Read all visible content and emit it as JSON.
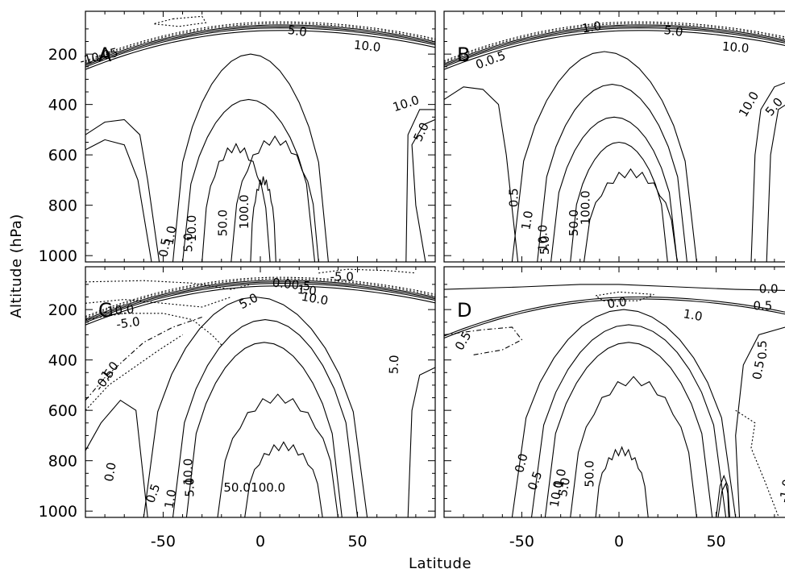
{
  "chart_data": {
    "type": "contour",
    "xlabel": "Latitude",
    "ylabel": "Altitude (hPa)",
    "xlim": [
      -90,
      90
    ],
    "ylim": [
      1025,
      30
    ],
    "x_ticks": [
      "-50",
      "0",
      "50"
    ],
    "y_ticks": [
      "200",
      "400",
      "600",
      "800",
      "1000"
    ],
    "panels": [
      {
        "label": "A",
        "contour_labels": [
          {
            "text": "5.0",
            "lat": 19,
            "p": 110,
            "rot": 8
          },
          {
            "text": "10.0",
            "lat": 55,
            "p": 170,
            "rot": 6
          },
          {
            "text": "-10.05",
            "lat": -83,
            "p": 212,
            "rot": -14
          },
          {
            "text": "10.0",
            "lat": 75,
            "p": 398,
            "rot": -18
          },
          {
            "text": "5.0",
            "lat": 83,
            "p": 510,
            "rot": -65
          },
          {
            "text": "100.0",
            "lat": -8,
            "p": 826,
            "rot": -90
          },
          {
            "text": "50.0",
            "lat": -19,
            "p": 870,
            "rot": -90
          },
          {
            "text": "10.0",
            "lat": -35,
            "p": 892,
            "rot": -90
          },
          {
            "text": "1.0",
            "lat": -46,
            "p": 920,
            "rot": -80
          },
          {
            "text": "5.0",
            "lat": -37,
            "p": 948,
            "rot": -90
          },
          {
            "text": "0.5",
            "lat": -49,
            "p": 968,
            "rot": -80
          }
        ]
      },
      {
        "label": "B",
        "contour_labels": [
          {
            "text": "1.0",
            "lat": -14,
            "p": 95,
            "rot": -10
          },
          {
            "text": "5.0",
            "lat": 28,
            "p": 110,
            "rot": 8
          },
          {
            "text": "10.0",
            "lat": 60,
            "p": 175,
            "rot": 5
          },
          {
            "text": "0.0.5",
            "lat": -66,
            "p": 225,
            "rot": -20
          },
          {
            "text": "10.0",
            "lat": 67,
            "p": 400,
            "rot": -60
          },
          {
            "text": "5.0",
            "lat": 80,
            "p": 410,
            "rot": -50
          },
          {
            "text": "0.5",
            "lat": -54,
            "p": 770,
            "rot": -90
          },
          {
            "text": "100.0",
            "lat": -17,
            "p": 810,
            "rot": -90
          },
          {
            "text": "50.0",
            "lat": -23,
            "p": 870,
            "rot": -90
          },
          {
            "text": "1.0",
            "lat": -47,
            "p": 860,
            "rot": -80
          },
          {
            "text": "10.0",
            "lat": -39,
            "p": 930,
            "rot": -90
          },
          {
            "text": "5.0",
            "lat": -38,
            "p": 958,
            "rot": -90
          }
        ]
      },
      {
        "label": "C",
        "contour_labels": [
          {
            "text": "-5.0",
            "lat": 42,
            "p": 72,
            "rot": 0
          },
          {
            "text": "0.00.5",
            "lat": 16,
            "p": 102,
            "rot": 6
          },
          {
            "text": "1.0",
            "lat": 24,
            "p": 125,
            "rot": 6
          },
          {
            "text": "5.0",
            "lat": -6,
            "p": 168,
            "rot": -28
          },
          {
            "text": "10.0",
            "lat": 28,
            "p": 158,
            "rot": 10
          },
          {
            "text": "-10.0",
            "lat": -73,
            "p": 205,
            "rot": -5
          },
          {
            "text": "-5.0",
            "lat": -68,
            "p": 255,
            "rot": -8
          },
          {
            "text": "5.0",
            "lat": 69,
            "p": 418,
            "rot": -88
          },
          {
            "text": "-1.0",
            "lat": -78,
            "p": 450,
            "rot": -50
          },
          {
            "text": "-0.5",
            "lat": -80,
            "p": 480,
            "rot": -55
          },
          {
            "text": "0.0",
            "lat": -77,
            "p": 845,
            "rot": -80
          },
          {
            "text": "100.0",
            "lat": 4,
            "p": 908,
            "rot": 0
          },
          {
            "text": "50.0",
            "lat": -12,
            "p": 908,
            "rot": 0
          },
          {
            "text": "10.0",
            "lat": -37,
            "p": 844,
            "rot": -90
          },
          {
            "text": "5.0",
            "lat": -36,
            "p": 906,
            "rot": -90
          },
          {
            "text": "1.0",
            "lat": -46,
            "p": 952,
            "rot": -80
          },
          {
            "text": "0.5",
            "lat": -55,
            "p": 930,
            "rot": -70
          }
        ]
      },
      {
        "label": "D",
        "contour_labels": [
          {
            "text": "0.0",
            "lat": 77,
            "p": 120,
            "rot": 0
          },
          {
            "text": "0.0",
            "lat": -1,
            "p": 175,
            "rot": -8
          },
          {
            "text": "0.5",
            "lat": 74,
            "p": 186,
            "rot": 0
          },
          {
            "text": "1.0",
            "lat": 38,
            "p": 224,
            "rot": 10
          },
          {
            "text": "0.5",
            "lat": -80,
            "p": 325,
            "rot": -60
          },
          {
            "text": "0.5",
            "lat": 74,
            "p": 360,
            "rot": -90
          },
          {
            "text": "0.5",
            "lat": 72,
            "p": 440,
            "rot": -80
          },
          {
            "text": "0.0",
            "lat": -50,
            "p": 810,
            "rot": -75
          },
          {
            "text": "50.0",
            "lat": -15,
            "p": 852,
            "rot": -90
          },
          {
            "text": "0.5",
            "lat": -43,
            "p": 880,
            "rot": -70
          },
          {
            "text": "1.0",
            "lat": -30,
            "p": 870,
            "rot": -80
          },
          {
            "text": "5.0",
            "lat": -28,
            "p": 905,
            "rot": -80
          },
          {
            "text": "10.0",
            "lat": -32,
            "p": 932,
            "rot": -80
          },
          {
            "text": "-1.0",
            "lat": 86,
            "p": 920,
            "rot": -80
          }
        ]
      }
    ]
  }
}
